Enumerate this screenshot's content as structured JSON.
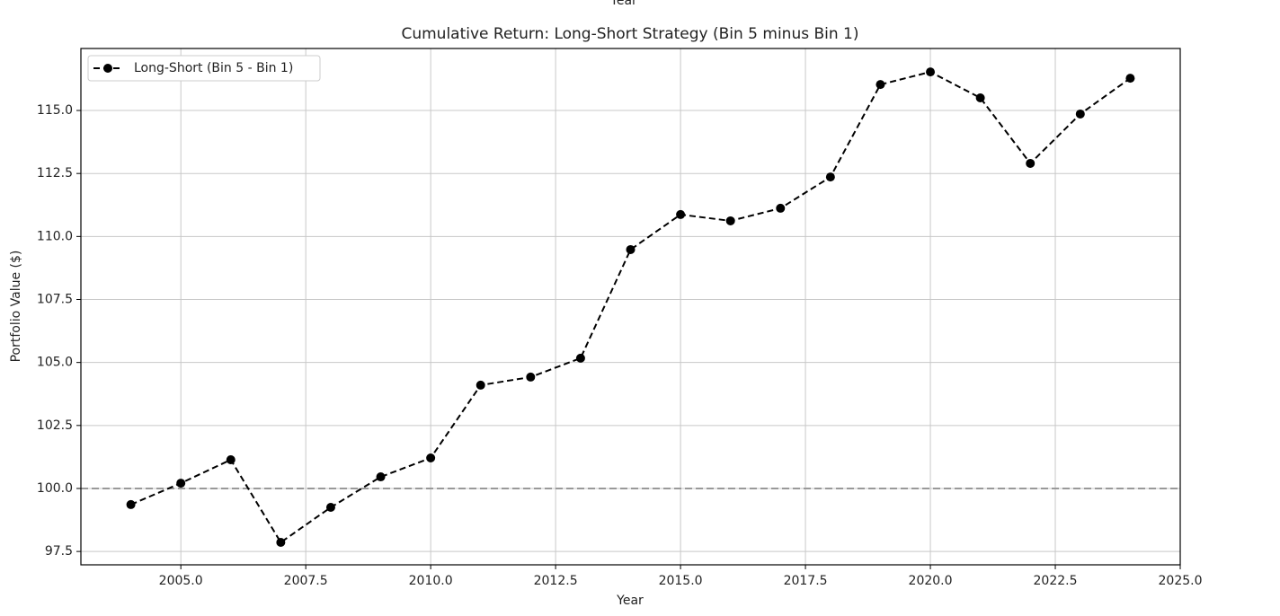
{
  "clipped_text": "Year",
  "chart_data": {
    "type": "line",
    "title": "Cumulative Return: Long-Short Strategy (Bin 5 minus Bin 1)",
    "xlabel": "Year",
    "ylabel": "Portfolio Value ($)",
    "x": [
      2004,
      2005,
      2006,
      2007,
      2008,
      2009,
      2010,
      2011,
      2012,
      2013,
      2014,
      2015,
      2016,
      2017,
      2018,
      2019,
      2020,
      2021,
      2022,
      2023,
      2024
    ],
    "series": [
      {
        "name": "Long-Short (Bin 5 - Bin 1)",
        "color": "#000000",
        "values": [
          99.36,
          100.21,
          101.14,
          97.86,
          99.25,
          100.46,
          101.21,
          104.1,
          104.42,
          105.17,
          109.48,
          110.87,
          110.62,
          111.12,
          112.36,
          116.03,
          116.53,
          115.5,
          112.9,
          114.86,
          116.28
        ]
      }
    ],
    "xlim": [
      2003,
      2025
    ],
    "xticks": [
      {
        "value": 2005,
        "label": "2005.0"
      },
      2007.5,
      {
        "value": 2010,
        "label": "2010.0"
      },
      2012.5,
      {
        "value": 2015,
        "label": "2015.0"
      },
      2017.5,
      {
        "value": 2020,
        "label": "2020.0"
      },
      2022.5,
      {
        "value": 2025,
        "label": "2025.0"
      }
    ],
    "ylim": [
      96.97,
      117.46
    ],
    "yticks": [
      97.5,
      {
        "value": 100,
        "label": "100.0"
      },
      102.5,
      {
        "value": 105,
        "label": "105.0"
      },
      107.5,
      {
        "value": 110,
        "label": "110.0"
      },
      112.5,
      {
        "value": 115,
        "label": "115.0"
      }
    ],
    "hline": 100,
    "hline_color": "#999999",
    "grid": true,
    "legend": "upper-left"
  }
}
